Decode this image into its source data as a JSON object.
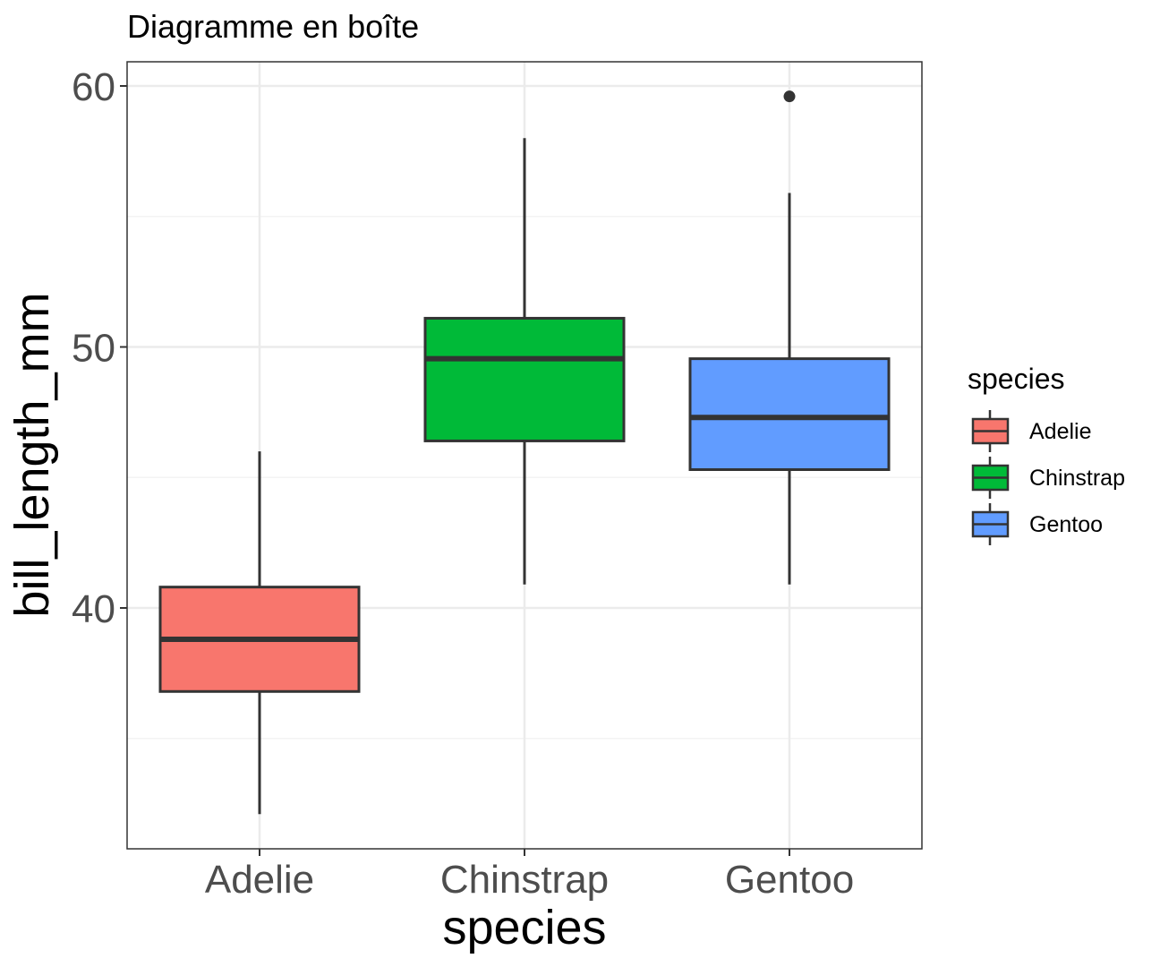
{
  "chart_data": {
    "type": "box",
    "title": "Diagramme en boîte",
    "xlabel": "species",
    "ylabel": "bill_length_mm",
    "ylim": [
      32.1,
      61.0
    ],
    "yticks": [
      40,
      50,
      60
    ],
    "grid": true,
    "legend_title": "species",
    "legend_placement": "right",
    "categories": [
      "Adelie",
      "Chinstrap",
      "Gentoo"
    ],
    "boxes": [
      {
        "name": "Adelie",
        "color": "#F8766D",
        "whisker_low": 32.1,
        "q1": 36.8,
        "median": 38.8,
        "q3": 40.8,
        "whisker_high": 46.0,
        "outliers": []
      },
      {
        "name": "Chinstrap",
        "color": "#00BA38",
        "whisker_low": 40.9,
        "q1": 46.4,
        "median": 49.55,
        "q3": 51.1,
        "whisker_high": 58.0,
        "outliers": []
      },
      {
        "name": "Gentoo",
        "color": "#619CFF",
        "whisker_low": 40.9,
        "q1": 45.3,
        "median": 47.3,
        "q3": 49.55,
        "whisker_high": 55.9,
        "outliers": [
          59.6
        ]
      }
    ]
  }
}
